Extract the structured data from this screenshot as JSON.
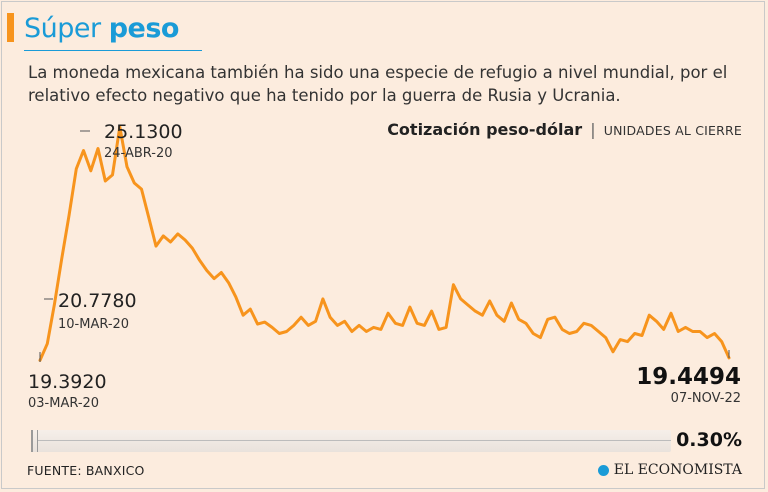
{
  "header": {
    "title_light": "Súper",
    "title_bold": "peso",
    "subtitle": "La moneda mexicana también ha sido una especie de refugio a nivel mundial, por el relativo efecto negativo que ha tenido por la guerra de Rusia y Ucrania."
  },
  "chart_header": {
    "title": "Cotización peso-dólar",
    "separator": "|",
    "units": "UNIDADES AL CIERRE"
  },
  "colors": {
    "line": "#f7941d",
    "accent": "#1a9bd7",
    "background": "#fcecde"
  },
  "chart_data": {
    "type": "line",
    "title": "Cotización peso-dólar",
    "ylabel": "UNIDADES AL CIERRE",
    "xlabel": "",
    "x_start": "03-MAR-20",
    "x_end": "07-NOV-22",
    "ylim": [
      19.3,
      25.3
    ],
    "values": [
      19.392,
      19.8,
      20.778,
      21.9,
      22.95,
      24.1,
      24.55,
      24.05,
      24.6,
      23.8,
      23.95,
      25.13,
      24.15,
      23.75,
      23.6,
      22.9,
      22.2,
      22.45,
      22.3,
      22.5,
      22.35,
      22.15,
      21.85,
      21.6,
      21.4,
      21.55,
      21.3,
      20.95,
      20.5,
      20.65,
      20.28,
      20.33,
      20.2,
      20.05,
      20.1,
      20.25,
      20.45,
      20.25,
      20.35,
      20.9,
      20.45,
      20.25,
      20.35,
      20.1,
      20.25,
      20.1,
      20.2,
      20.15,
      20.55,
      20.3,
      20.25,
      20.7,
      20.3,
      20.25,
      20.6,
      20.15,
      20.2,
      21.25,
      20.9,
      20.75,
      20.6,
      20.5,
      20.85,
      20.5,
      20.35,
      20.8,
      20.4,
      20.3,
      20.05,
      19.95,
      20.4,
      20.45,
      20.15,
      20.05,
      20.1,
      20.3,
      20.25,
      20.1,
      19.95,
      19.6,
      19.9,
      19.85,
      20.05,
      20.0,
      20.5,
      20.35,
      20.15,
      20.55,
      20.1,
      20.2,
      20.1,
      20.1,
      19.95,
      20.05,
      19.85,
      19.4494
    ],
    "annotations": [
      {
        "label": "min",
        "value": "19.3920",
        "date": "03-MAR-20"
      },
      {
        "label": "early",
        "value": "20.7780",
        "date": "10-MAR-20"
      },
      {
        "label": "max",
        "value": "25.1300",
        "date": "24-ABR-20"
      },
      {
        "label": "last",
        "value": "19.4494",
        "date": "07-NOV-22"
      }
    ]
  },
  "progress": {
    "percent_value": 0.3,
    "percent_label": "0.30%"
  },
  "footer": {
    "source": "FUENTE: BANXICO",
    "brand": "EL ECONOMISTA"
  }
}
